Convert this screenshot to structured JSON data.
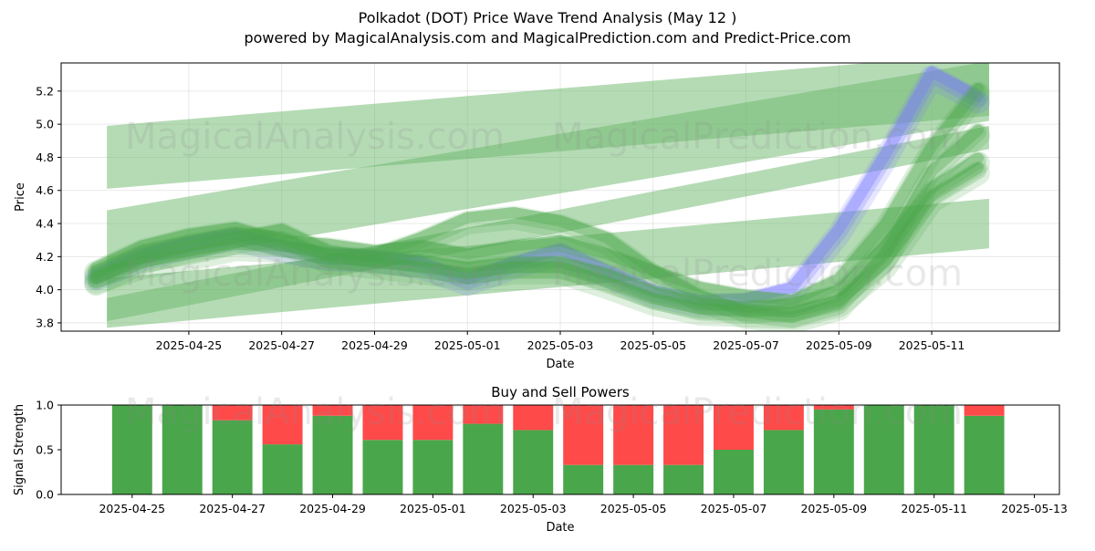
{
  "figure": {
    "title": "Polkadot (DOT) Price Wave Trend Analysis (May 12 )",
    "subtitle": "powered by MagicalAnalysis.com and MagicalPrediction.com and Predict-Price.com",
    "watermarks": [
      "MagicalAnalysis.com",
      "MagicalPrediction.com"
    ],
    "colors": {
      "green": "#4aa64a",
      "red": "#ff4a4a",
      "blue": "#7777ff",
      "band_green": "#6cb86c"
    }
  },
  "chart_data": [
    {
      "type": "line",
      "title": "",
      "xlabel": "Date",
      "ylabel": "Price",
      "x_start": "2025-04-23",
      "x_end": "2025-05-12",
      "xlim": [
        "2025-04-22T06:00",
        "2025-05-13T18:00"
      ],
      "ylim": [
        3.75,
        5.37
      ],
      "yticks": [
        3.8,
        4.0,
        4.2,
        4.4,
        4.6,
        4.8,
        5.0,
        5.2
      ],
      "xticks": [
        "2025-04-25",
        "2025-04-27",
        "2025-04-29",
        "2025-05-01",
        "2025-05-03",
        "2025-05-05",
        "2025-05-07",
        "2025-05-09",
        "2025-05-11"
      ],
      "grid": true,
      "bands": [
        {
          "color": "green",
          "start": [
            "2025-04-23",
            4.8
          ],
          "end": [
            "2025-05-12",
            5.24
          ],
          "width": 0.38
        },
        {
          "color": "green",
          "start": [
            "2025-04-23",
            4.3
          ],
          "end": [
            "2025-05-12",
            5.2
          ],
          "width": 0.36
        },
        {
          "color": "green",
          "start": [
            "2025-04-23",
            3.92
          ],
          "end": [
            "2025-05-12",
            4.4
          ],
          "width": 0.3
        },
        {
          "color": "green",
          "start": [
            "2025-04-23",
            3.88
          ],
          "end": [
            "2025-05-12",
            4.92
          ],
          "width": 0.14
        }
      ],
      "series": [
        {
          "color": "blue",
          "x": [
            "2025-04-23",
            "2025-04-24",
            "2025-04-25",
            "2025-04-26",
            "2025-04-27",
            "2025-04-28",
            "2025-04-29",
            "2025-04-30",
            "2025-05-01",
            "2025-05-02",
            "2025-05-03",
            "2025-05-04",
            "2025-05-05",
            "2025-05-06",
            "2025-05-07",
            "2025-05-08",
            "2025-05-09",
            "2025-05-10",
            "2025-05-11",
            "2025-05-12"
          ],
          "y": [
            4.08,
            4.2,
            4.27,
            4.32,
            4.25,
            4.2,
            4.19,
            4.15,
            4.05,
            4.15,
            4.23,
            4.1,
            3.98,
            3.92,
            3.93,
            4.0,
            4.35,
            4.8,
            5.3,
            5.15
          ]
        },
        {
          "color": "green",
          "x": [
            "2025-04-23",
            "2025-04-24",
            "2025-04-25",
            "2025-04-26",
            "2025-04-27",
            "2025-04-28",
            "2025-04-29",
            "2025-04-30",
            "2025-05-01",
            "2025-05-02",
            "2025-05-03",
            "2025-05-04",
            "2025-05-05",
            "2025-05-06",
            "2025-05-07",
            "2025-05-08",
            "2025-05-09",
            "2025-05-10",
            "2025-05-11",
            "2025-05-12"
          ],
          "y": [
            4.05,
            4.18,
            4.25,
            4.3,
            4.35,
            4.22,
            4.18,
            4.16,
            4.12,
            4.15,
            4.15,
            4.08,
            3.97,
            3.9,
            3.88,
            3.9,
            3.98,
            4.25,
            4.6,
            4.78
          ]
        },
        {
          "color": "green",
          "x": [
            "2025-04-23",
            "2025-04-24",
            "2025-04-25",
            "2025-04-26",
            "2025-04-27",
            "2025-04-28",
            "2025-04-29",
            "2025-04-30",
            "2025-05-01",
            "2025-05-02",
            "2025-05-03",
            "2025-05-04",
            "2025-05-05",
            "2025-05-06",
            "2025-05-07",
            "2025-05-08",
            "2025-05-09",
            "2025-05-10",
            "2025-05-11",
            "2025-05-12"
          ],
          "y": [
            4.1,
            4.22,
            4.28,
            4.33,
            4.3,
            4.18,
            4.15,
            4.12,
            4.08,
            4.12,
            4.12,
            4.03,
            3.93,
            3.87,
            3.86,
            3.85,
            3.92,
            4.15,
            4.55,
            4.72
          ]
        },
        {
          "color": "green",
          "x": [
            "2025-04-23",
            "2025-04-24",
            "2025-04-25",
            "2025-04-26",
            "2025-04-27",
            "2025-04-28",
            "2025-04-29",
            "2025-04-30",
            "2025-05-01",
            "2025-05-02",
            "2025-05-03",
            "2025-05-04",
            "2025-05-05",
            "2025-05-06",
            "2025-05-07",
            "2025-05-08",
            "2025-05-09",
            "2025-05-10",
            "2025-05-11",
            "2025-05-12"
          ],
          "y": [
            4.12,
            4.25,
            4.32,
            4.36,
            4.28,
            4.26,
            4.22,
            4.25,
            4.2,
            4.25,
            4.28,
            4.2,
            4.1,
            4.0,
            3.95,
            3.92,
            4.05,
            4.38,
            4.85,
            5.2
          ]
        },
        {
          "color": "green",
          "x": [
            "2025-04-23",
            "2025-04-24",
            "2025-04-25",
            "2025-04-26",
            "2025-04-27",
            "2025-04-28",
            "2025-04-29",
            "2025-04-30",
            "2025-05-01",
            "2025-05-02",
            "2025-05-03",
            "2025-05-04",
            "2025-05-05",
            "2025-05-06",
            "2025-05-07",
            "2025-05-08",
            "2025-05-09",
            "2025-05-10",
            "2025-05-11",
            "2025-05-12"
          ],
          "y": [
            4.06,
            4.15,
            4.2,
            4.26,
            4.25,
            4.2,
            4.2,
            4.3,
            4.42,
            4.45,
            4.4,
            4.3,
            4.1,
            3.95,
            3.85,
            3.82,
            3.9,
            4.2,
            4.7,
            4.95
          ]
        }
      ]
    },
    {
      "type": "bar",
      "title": "Buy and Sell Powers",
      "xlabel": "Date",
      "ylabel": "Signal Strength",
      "xlim": [
        "2025-04-23T14:00",
        "2025-05-13T12:00"
      ],
      "ylim": [
        0,
        1.0
      ],
      "yticks": [
        0.0,
        0.5,
        1.0
      ],
      "xticks": [
        "2025-04-25",
        "2025-04-27",
        "2025-04-29",
        "2025-05-01",
        "2025-05-03",
        "2025-05-05",
        "2025-05-07",
        "2025-05-09",
        "2025-05-11",
        "2025-05-13"
      ],
      "categories": [
        "2025-04-25",
        "2025-04-26",
        "2025-04-27",
        "2025-04-28",
        "2025-04-29",
        "2025-04-30",
        "2025-05-01",
        "2025-05-02",
        "2025-05-03",
        "2025-05-04",
        "2025-05-05",
        "2025-05-06",
        "2025-05-07",
        "2025-05-08",
        "2025-05-09",
        "2025-05-10",
        "2025-05-11",
        "2025-05-12"
      ],
      "series": [
        {
          "color": "green",
          "values": [
            1.0,
            1.0,
            0.83,
            0.56,
            0.88,
            0.61,
            0.61,
            0.79,
            0.72,
            0.33,
            0.33,
            0.33,
            0.5,
            0.72,
            0.95,
            1.0,
            1.0,
            0.88
          ]
        },
        {
          "color": "red",
          "values": [
            0.0,
            0.0,
            0.17,
            0.44,
            0.12,
            0.39,
            0.39,
            0.21,
            0.28,
            0.67,
            0.67,
            0.67,
            0.5,
            0.28,
            0.05,
            0.0,
            0.0,
            0.12
          ]
        }
      ]
    }
  ]
}
